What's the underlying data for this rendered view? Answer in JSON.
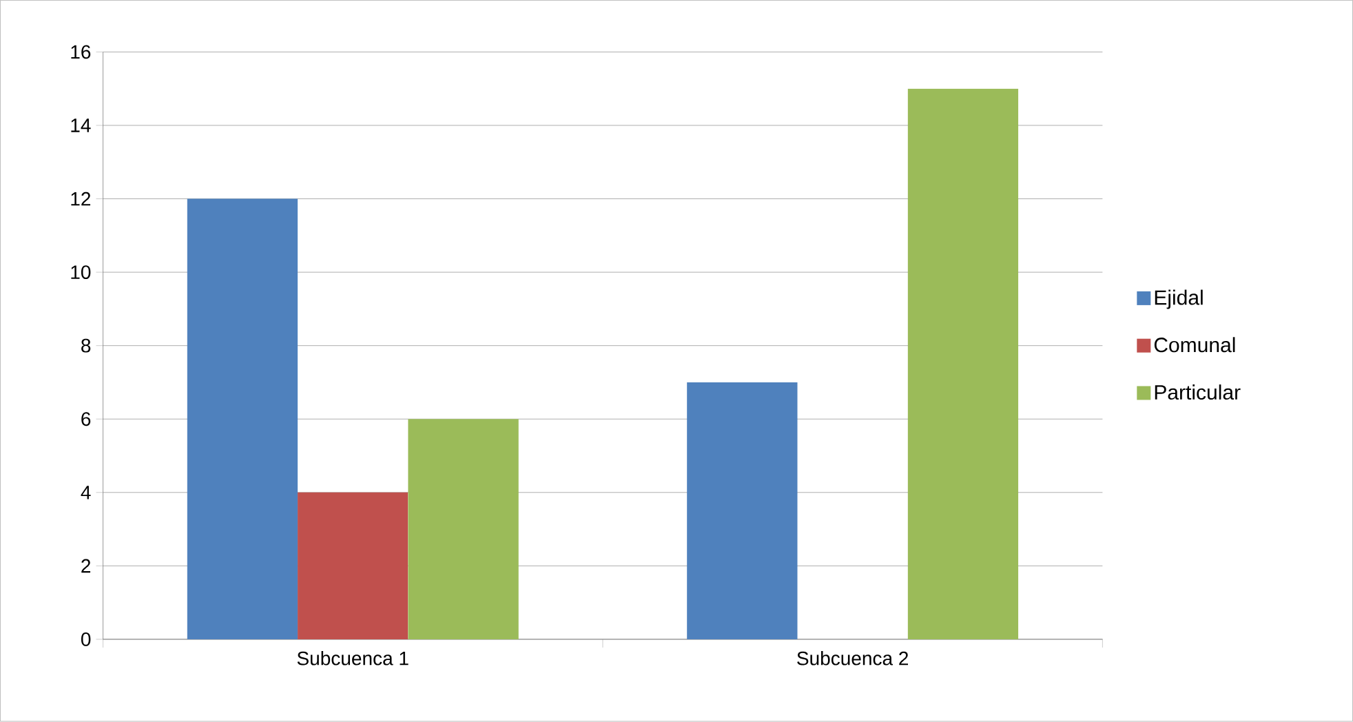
{
  "chart_data": {
    "type": "bar",
    "categories": [
      "Subcuenca 1",
      "Subcuenca 2"
    ],
    "series": [
      {
        "name": "Ejidal",
        "color": "#4f81bd",
        "values": [
          12,
          7
        ]
      },
      {
        "name": "Comunal",
        "color": "#c0504d",
        "values": [
          4,
          null
        ]
      },
      {
        "name": "Particular",
        "color": "#9bbb59",
        "values": [
          6,
          15
        ]
      }
    ],
    "ylim": [
      0,
      16
    ],
    "yticks": [
      0,
      2,
      4,
      6,
      8,
      10,
      12,
      14,
      16
    ],
    "grid": "y",
    "legend": "right"
  }
}
